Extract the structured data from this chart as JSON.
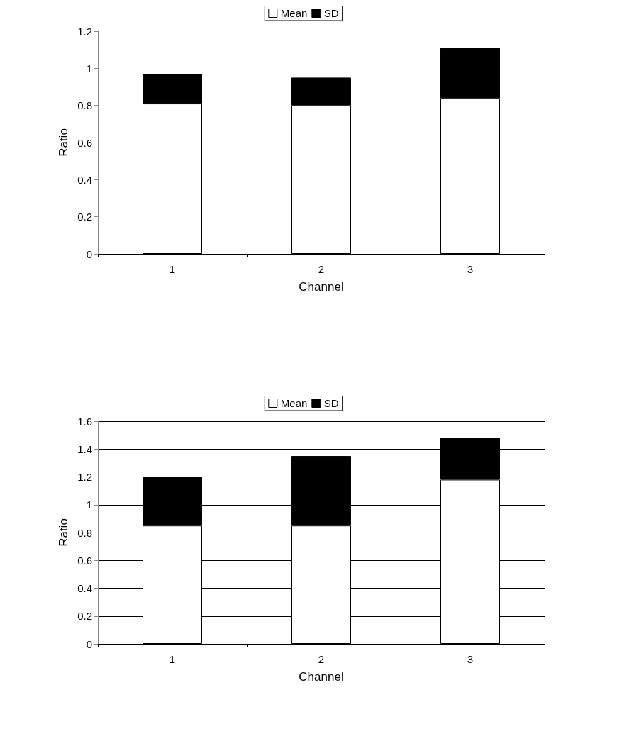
{
  "chart_data": [
    {
      "type": "bar",
      "stacked": true,
      "categories": [
        "1",
        "2",
        "3"
      ],
      "xlabel": "Channel",
      "ylabel": "Ratio",
      "ylim": [
        0,
        1.2
      ],
      "yticks": [
        0,
        0.2,
        0.4,
        0.6,
        0.8,
        1,
        1.2
      ],
      "grid": false,
      "legend": "top",
      "series": [
        {
          "name": "Mean",
          "color": "#ffffff",
          "values": [
            0.81,
            0.8,
            0.84
          ]
        },
        {
          "name": "SD",
          "color": "#000000",
          "values": [
            0.16,
            0.15,
            0.27
          ]
        }
      ]
    },
    {
      "type": "bar",
      "stacked": true,
      "categories": [
        "1",
        "2",
        "3"
      ],
      "xlabel": "Channel",
      "ylabel": "Ratio",
      "ylim": [
        0,
        1.6
      ],
      "yticks": [
        0,
        0.2,
        0.4,
        0.6,
        0.8,
        1,
        1.2,
        1.4,
        1.6
      ],
      "grid": "y",
      "legend": "top",
      "series": [
        {
          "name": "Mean",
          "color": "#ffffff",
          "values": [
            0.85,
            0.85,
            1.18
          ]
        },
        {
          "name": "SD",
          "color": "#000000",
          "values": [
            0.35,
            0.5,
            0.3
          ]
        }
      ]
    }
  ]
}
